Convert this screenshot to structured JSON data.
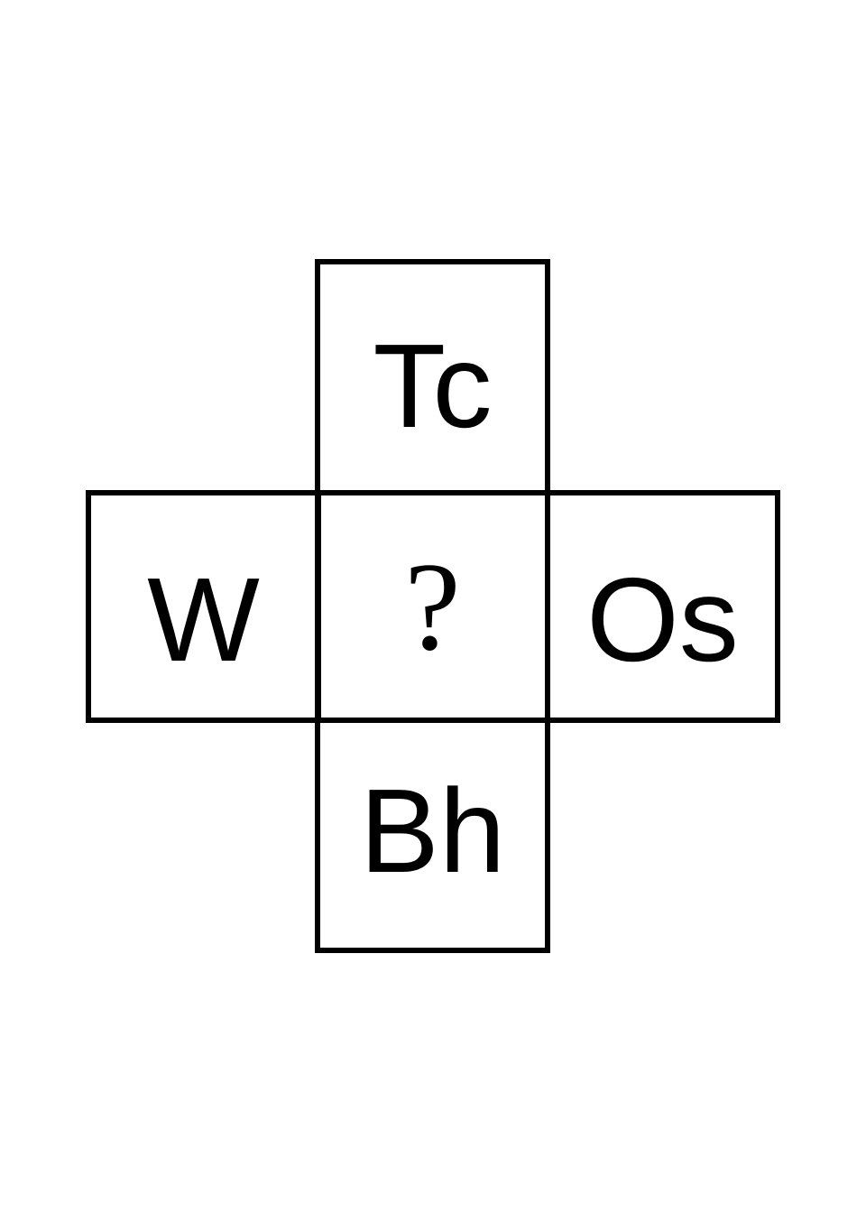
{
  "cells": {
    "top": "Tc",
    "left": "W",
    "center": "?",
    "right": "Os",
    "bottom": "Bh"
  }
}
